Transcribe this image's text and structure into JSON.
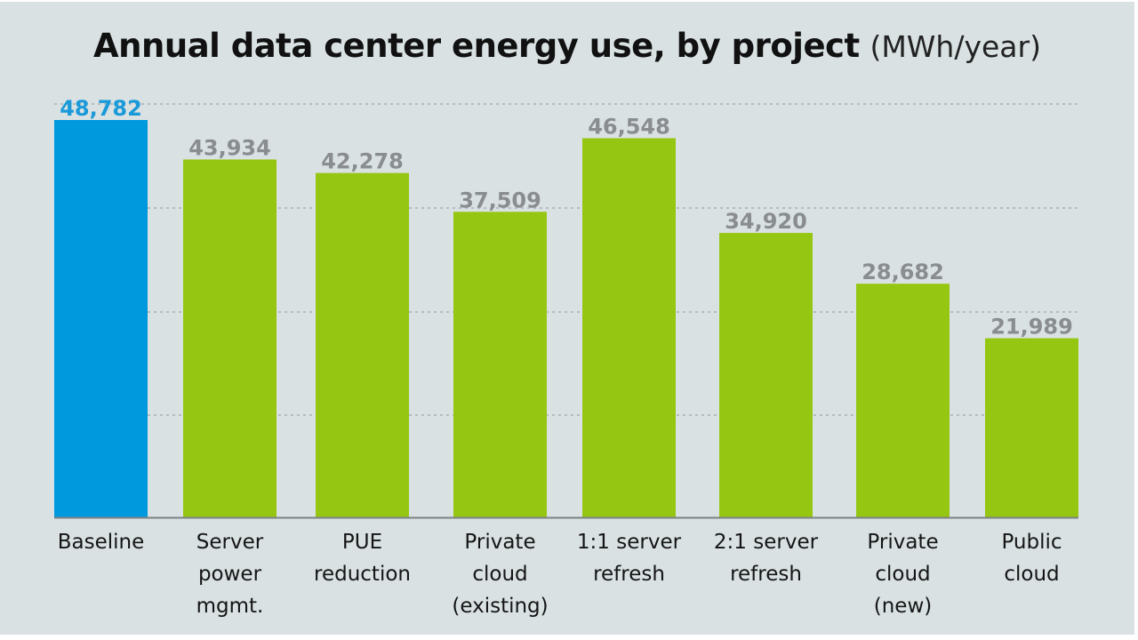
{
  "chart_data": {
    "type": "bar",
    "title": "Annual data center energy use, by project",
    "unit": "(MWh/year)",
    "xlabel": "",
    "ylabel": "",
    "categories": [
      [
        "Baseline"
      ],
      [
        "Server",
        "power",
        "mgmt."
      ],
      [
        "PUE",
        "reduction"
      ],
      [
        "Private",
        "cloud",
        "(existing)"
      ],
      [
        "1:1 server",
        "refresh"
      ],
      [
        "2:1 server",
        "refresh"
      ],
      [
        "Private",
        "cloud",
        "(new)"
      ],
      [
        "Public",
        "cloud"
      ]
    ],
    "values": [
      48782,
      43934,
      42278,
      37509,
      46548,
      34920,
      28682,
      21989
    ],
    "value_labels": [
      "48,782",
      "43,934",
      "42,278",
      "37,509",
      "46,548",
      "34,920",
      "28,682",
      "21,989"
    ],
    "highlight_index": 0,
    "ylim": [
      0,
      48782
    ],
    "grid": true,
    "legend": "none"
  },
  "colors": {
    "background": "#d9e1e3",
    "baseline_bar": "#0099dd",
    "bar": "#95c712",
    "baseline_label": "#1a9ad9",
    "value_label": "#8a8d8f",
    "gridline": "#a9afb2",
    "axis": "#7b8285"
  }
}
